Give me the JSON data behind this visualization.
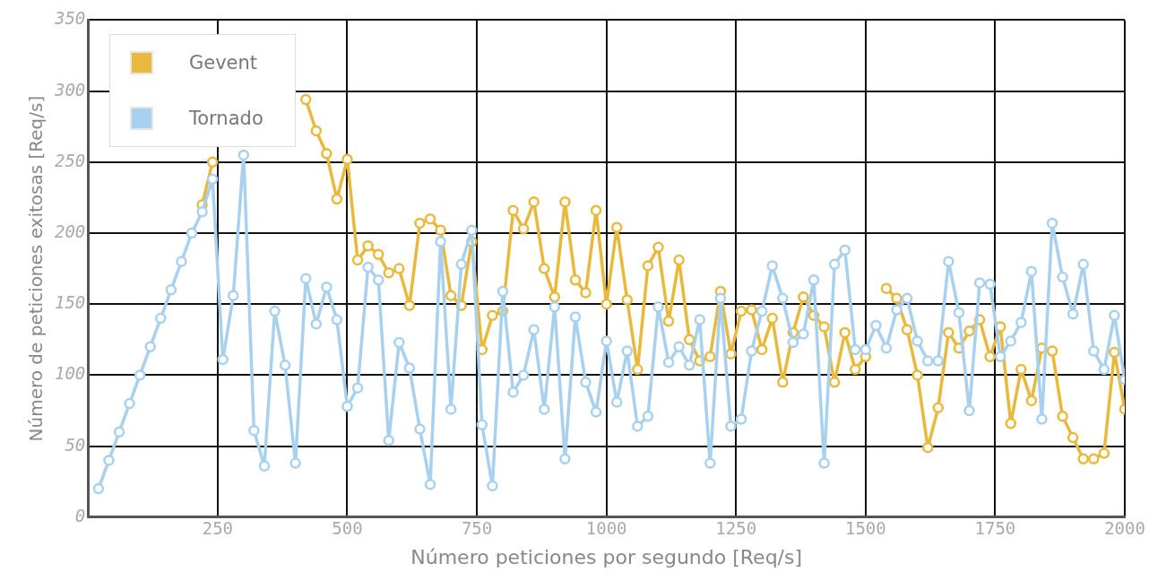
{
  "chart_data": {
    "type": "line",
    "xlabel": "Número peticiones por segundo [Req/s]",
    "ylabel": "Número de peticiones exitosas [Req/s]",
    "x": [
      20,
      40,
      60,
      80,
      100,
      120,
      140,
      160,
      180,
      200,
      220,
      240,
      260,
      280,
      300,
      320,
      340,
      360,
      380,
      400,
      420,
      440,
      460,
      480,
      500,
      520,
      540,
      560,
      580,
      600,
      620,
      640,
      660,
      680,
      700,
      720,
      740,
      760,
      780,
      800,
      820,
      840,
      860,
      880,
      900,
      920,
      940,
      960,
      980,
      1000,
      1020,
      1040,
      1060,
      1080,
      1100,
      1120,
      1140,
      1160,
      1180,
      1200,
      1220,
      1240,
      1260,
      1280,
      1300,
      1320,
      1340,
      1360,
      1380,
      1400,
      1420,
      1440,
      1460,
      1480,
      1500,
      1520,
      1540,
      1560,
      1580,
      1600,
      1620,
      1640,
      1660,
      1680,
      1700,
      1720,
      1740,
      1760,
      1780,
      1800,
      1820,
      1840,
      1860,
      1880,
      1900,
      1920,
      1940,
      1960,
      1980,
      2000
    ],
    "series": [
      {
        "name": "Gevent",
        "color": "#e8b93c",
        "values": [
          null,
          null,
          null,
          null,
          null,
          null,
          null,
          null,
          null,
          null,
          220,
          250,
          null,
          null,
          null,
          null,
          null,
          null,
          null,
          null,
          294,
          272,
          256,
          224,
          252,
          181,
          191,
          185,
          172,
          175,
          149,
          207,
          210,
          202,
          156,
          149,
          194,
          118,
          142,
          145,
          216,
          203,
          222,
          175,
          155,
          222,
          167,
          158,
          216,
          150,
          204,
          153,
          104,
          177,
          190,
          138,
          181,
          125,
          110,
          113,
          159,
          115,
          145,
          146,
          118,
          140,
          95,
          130,
          155,
          142,
          134,
          95,
          130,
          104,
          113,
          null,
          161,
          154,
          132,
          100,
          49,
          77,
          130,
          119,
          131,
          139,
          113,
          134,
          66,
          104,
          82,
          119,
          117,
          71,
          56,
          41,
          41,
          45,
          116,
          76
        ]
      },
      {
        "name": "Tornado",
        "color": "#a8d0ef",
        "values": [
          20,
          40,
          60,
          80,
          100,
          120,
          140,
          160,
          180,
          200,
          215,
          238,
          111,
          156,
          255,
          61,
          36,
          145,
          107,
          38,
          168,
          136,
          162,
          139,
          78,
          91,
          176,
          167,
          54,
          123,
          105,
          62,
          23,
          194,
          76,
          178,
          202,
          65,
          22,
          159,
          88,
          100,
          132,
          76,
          148,
          41,
          141,
          95,
          74,
          124,
          81,
          117,
          64,
          71,
          148,
          109,
          120,
          107,
          139,
          38,
          154,
          64,
          69,
          117,
          145,
          177,
          154,
          123,
          129,
          167,
          38,
          178,
          188,
          118,
          118,
          135,
          119,
          146,
          154,
          124,
          110,
          110,
          180,
          144,
          75,
          165,
          164,
          113,
          124,
          137,
          173,
          69,
          207,
          169,
          143,
          178,
          117,
          104,
          142,
          97
        ]
      }
    ],
    "xlim": [
      0,
      2000
    ],
    "xticks": [
      250,
      500,
      750,
      1000,
      1250,
      1500,
      1750,
      2000
    ],
    "ylim": [
      0,
      350
    ],
    "yticks": [
      0,
      50,
      100,
      150,
      200,
      250,
      300,
      350
    ],
    "grid": true,
    "legend": "top left",
    "marker": "circle",
    "line_style": "solid"
  }
}
